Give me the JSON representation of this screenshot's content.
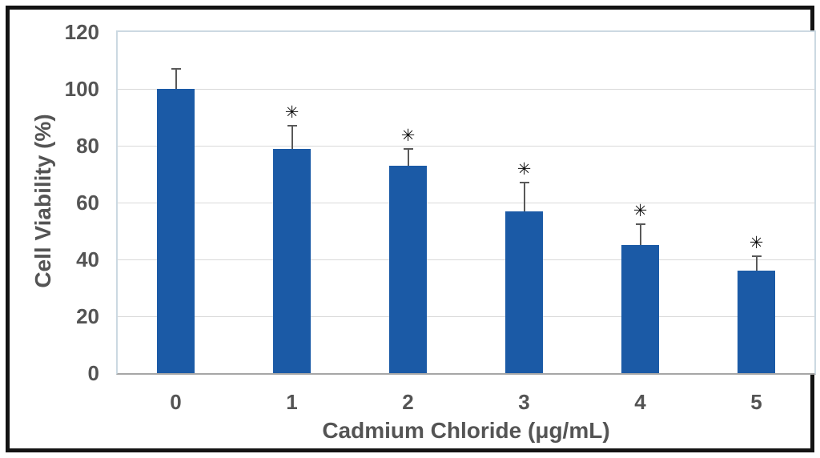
{
  "figure": {
    "background": "#ffffff",
    "border_color": "#131313"
  },
  "chart_data": {
    "type": "bar",
    "title": "",
    "xlabel": "Cadmium Chloride (μg/mL)",
    "ylabel": "Cell Viability (%)",
    "categories": [
      "0",
      "1",
      "2",
      "3",
      "4",
      "5"
    ],
    "series": [
      {
        "name": "Cell Viability",
        "values": [
          100,
          79,
          73,
          57,
          45,
          36
        ],
        "errors": [
          7,
          8,
          6,
          10,
          7.5,
          5
        ],
        "significance": [
          "",
          "*",
          "*",
          "*",
          "*",
          "*"
        ]
      }
    ],
    "yticks": [
      0,
      20,
      40,
      60,
      80,
      100,
      120
    ],
    "ylim": [
      0,
      120
    ],
    "grid": "horizontal",
    "legend": "none",
    "significance_symbol": "✳",
    "colors": {
      "bar": "#1b5aa6",
      "error_bar": "#595959",
      "grid": "#d9d9d9",
      "axis_text": "#545454",
      "plot_border": "#ccd9e2",
      "axis_line": "#a6a6a6",
      "significance": "#111111"
    }
  }
}
